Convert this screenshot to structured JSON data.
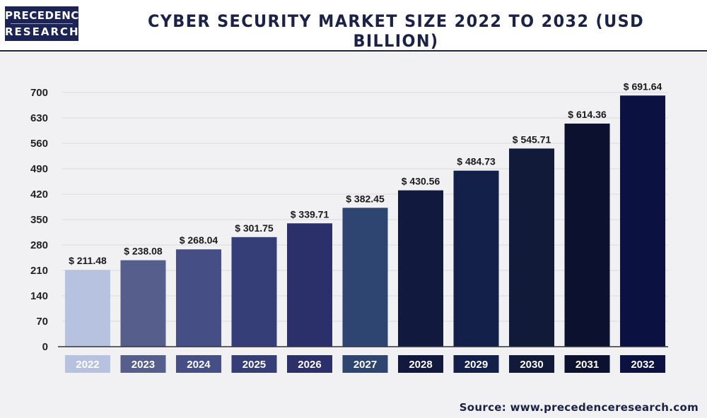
{
  "brand": {
    "logo_line1": "PRECEDENCE",
    "logo_line2": "RESEARCH"
  },
  "header": {
    "title": "CYBER SECURITY MARKET SIZE 2022 TO 2032 (USD BILLION)"
  },
  "source": "Source: www.precedenceresearch.com",
  "colors": {
    "background": "#f1f1f3",
    "title": "#1b2147",
    "bars": [
      "#b7c1e0",
      "#565f8c",
      "#464e86",
      "#363e78",
      "#2b306a",
      "#2e4572",
      "#11193f",
      "#13204a",
      "#121a3a",
      "#0d1130",
      "#0b1140"
    ]
  },
  "chart_data": {
    "type": "bar",
    "title": "CYBER SECURITY MARKET SIZE 2022 TO 2032 (USD BILLION)",
    "categories": [
      "2022",
      "2023",
      "2024",
      "2025",
      "2026",
      "2027",
      "2028",
      "2029",
      "2030",
      "2031",
      "2032"
    ],
    "values": [
      211.48,
      238.08,
      268.04,
      301.75,
      339.71,
      382.45,
      430.56,
      484.73,
      545.71,
      614.36,
      691.64
    ],
    "data_labels": [
      "$ 211.48",
      "$ 238.08",
      "$ 268.04",
      "$ 301.75",
      "$ 339.71",
      "$ 382.45",
      "$ 430.56",
      "$ 484.73",
      "$ 545.71",
      "$ 614.36",
      "$ 691.64"
    ],
    "y_ticks": [
      0,
      70,
      140,
      210,
      280,
      350,
      420,
      490,
      560,
      630,
      700
    ],
    "ylim": [
      0,
      700
    ],
    "xlabel": "",
    "ylabel": "",
    "grid": true
  }
}
